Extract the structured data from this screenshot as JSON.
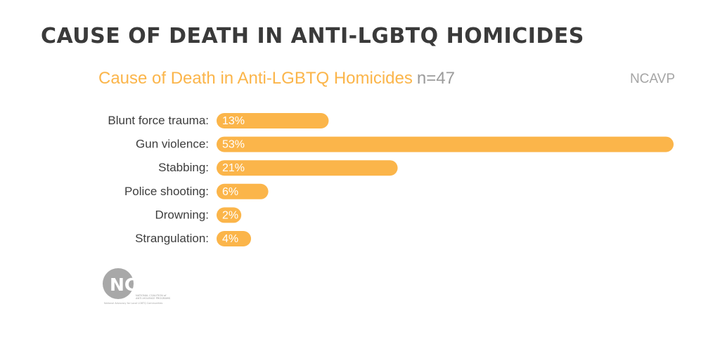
{
  "heading": "Cause of Death in Anti-LGBTQ Homicides",
  "chart_header": {
    "title": "Cause of Death in Anti-LGBTQ Homicides",
    "n_label": "n=47",
    "source": "NCAVP"
  },
  "logo": {
    "name": "NCAVP",
    "line1": "NATIONAL COALITION of",
    "line2": "ANTI-VIOLENCE PROGRAMS",
    "tagline": "National Advocacy for Local LGBTQ Communities"
  },
  "colors": {
    "bar": "#fbb54a",
    "title": "#fbb54a",
    "heading": "#3a3a3a",
    "label": "#3d3d3d",
    "muted": "#9b9b9b"
  },
  "chart_data": {
    "type": "bar",
    "orientation": "horizontal",
    "title": "Cause of Death in Anti-LGBTQ Homicides",
    "n": 47,
    "categories": [
      "Blunt force trauma:",
      "Gun violence:",
      "Stabbing:",
      "Police shooting:",
      "Drowning:",
      "Strangulation:"
    ],
    "values": [
      13,
      53,
      21,
      6,
      2,
      4
    ],
    "value_labels": [
      "13%",
      "53%",
      "21%",
      "6%",
      "2%",
      "4%"
    ],
    "unit": "%",
    "xlim": [
      0,
      53
    ],
    "grid": false
  }
}
